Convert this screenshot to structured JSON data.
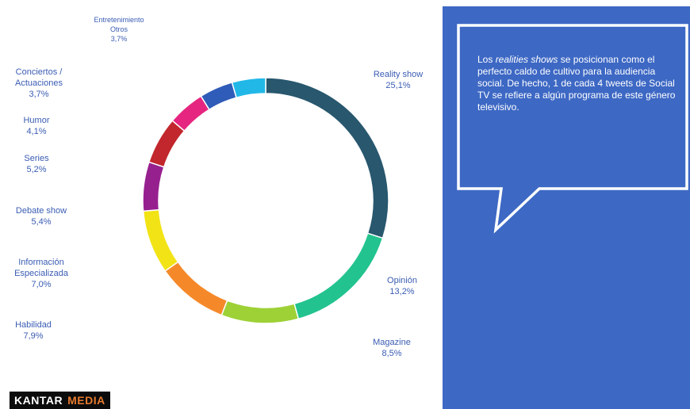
{
  "chart_data": {
    "type": "pie",
    "donut": true,
    "slices": [
      {
        "label": "Reality show",
        "value": 25.1,
        "value_text": "25,1%",
        "color": "#28576e"
      },
      {
        "label": "Opinión",
        "value": 13.2,
        "value_text": "13,2%",
        "color": "#22c38e"
      },
      {
        "label": "Magazine",
        "value": 8.5,
        "value_text": "8,5%",
        "color": "#9dd136"
      },
      {
        "label": "Habilidad",
        "value": 7.9,
        "value_text": "7,9%",
        "color": "#f5892a"
      },
      {
        "label": "Información Especializada",
        "value": 7.0,
        "value_text": "7,0%",
        "color": "#f2e316"
      },
      {
        "label": "Debate show",
        "value": 5.4,
        "value_text": "5,4%",
        "color": "#97208f"
      },
      {
        "label": "Series",
        "value": 5.2,
        "value_text": "5,2%",
        "color": "#c1272d"
      },
      {
        "label": "Humor",
        "value": 4.1,
        "value_text": "4,1%",
        "color": "#e5257f"
      },
      {
        "label": "Conciertos / Actuaciones",
        "value": 3.7,
        "value_text": "3,7%",
        "color": "#2f5cb8"
      },
      {
        "label": "Entretenimiento Otros",
        "value": 3.7,
        "value_text": "3,7%",
        "color": "#21b8e8"
      }
    ]
  },
  "labels": {
    "reality": {
      "name": "Reality show",
      "pct": "25,1%"
    },
    "opinion": {
      "name": "Opinión",
      "pct": "13,2%"
    },
    "magazine": {
      "name": "Magazine",
      "pct": "8,5%"
    },
    "habilidad": {
      "name": "Habilidad",
      "pct": "7,9%"
    },
    "informacion": {
      "name_1": "Información",
      "name_2": "Especializada",
      "pct": "7,0%"
    },
    "debate": {
      "name": "Debate show",
      "pct": "5,4%"
    },
    "series": {
      "name": "Series",
      "pct": "5,2%"
    },
    "humor": {
      "name": "Humor",
      "pct": "4,1%"
    },
    "conciertos": {
      "name_1": "Conciertos /",
      "name_2": "Actuaciones",
      "pct": "3,7%"
    },
    "entretenimiento": {
      "name_1": "Entretenimiento",
      "name_2": "Otros",
      "pct": "3,7%"
    }
  },
  "callout": {
    "pre": "Los ",
    "em": "realities shows",
    "post": " se posicionan como el perfecto caldo de cultivo para la audiencia social. De hecho,  1 de cada 4 tweets de Social TV se refiere a algún programa de este género televisivo."
  },
  "colors": {
    "panel": "#3d68c4",
    "label_text": "#3a5cb3"
  },
  "logo": {
    "part1": "KANTAR",
    "part2": "MEDIA"
  }
}
